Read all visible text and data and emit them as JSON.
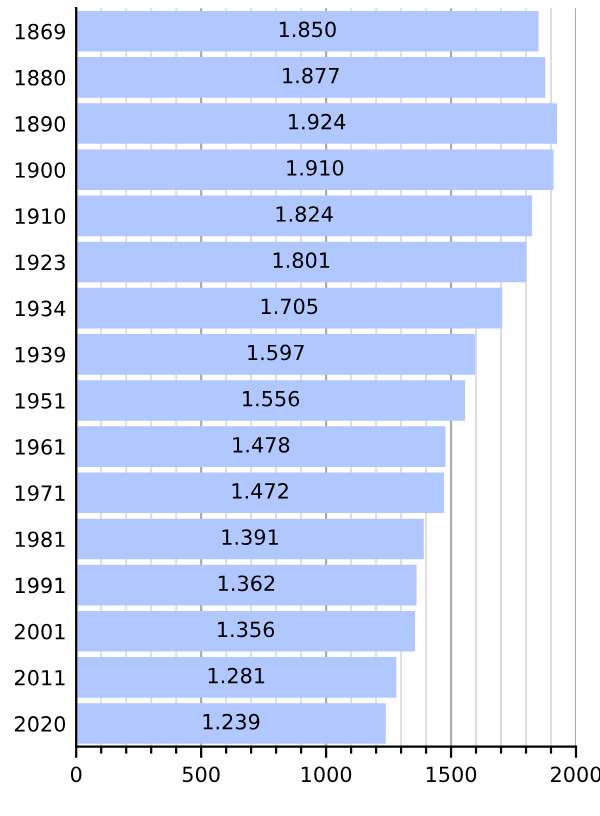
{
  "chart_data": {
    "type": "bar",
    "orientation": "horizontal",
    "categories": [
      "1869",
      "1880",
      "1890",
      "1900",
      "1910",
      "1923",
      "1934",
      "1939",
      "1951",
      "1961",
      "1971",
      "1981",
      "1991",
      "2001",
      "2011",
      "2020"
    ],
    "values": [
      1850,
      1877,
      1924,
      1910,
      1824,
      1801,
      1705,
      1597,
      1556,
      1478,
      1472,
      1391,
      1362,
      1356,
      1281,
      1239
    ],
    "value_labels": [
      "1.850",
      "1.877",
      "1.924",
      "1.910",
      "1.824",
      "1.801",
      "1.705",
      "1.597",
      "1.556",
      "1.478",
      "1.472",
      "1.391",
      "1.362",
      "1.356",
      "1.281",
      "1.239"
    ],
    "color": "#b0c8ff",
    "xlim": [
      0,
      2000
    ],
    "xticks": [
      0,
      {
        "value": 100,
        "label": null
      },
      {
        "value": 200,
        "label": null
      },
      {
        "value": 300,
        "label": null
      },
      {
        "value": 400,
        "label": null
      },
      500,
      {
        "value": 600,
        "label": null
      },
      {
        "value": 700,
        "label": null
      },
      {
        "value": 800,
        "label": null
      },
      {
        "value": 900,
        "label": null
      },
      1000,
      {
        "value": 1100,
        "label": null
      },
      {
        "value": 1200,
        "label": null
      },
      {
        "value": 1300,
        "label": null
      },
      {
        "value": 1400,
        "label": null
      },
      1500,
      {
        "value": 1600,
        "label": null
      },
      {
        "value": 1700,
        "label": null
      },
      {
        "value": 1800,
        "label": null
      },
      {
        "value": 1900,
        "label": null
      },
      2000
    ],
    "grid": "x"
  }
}
